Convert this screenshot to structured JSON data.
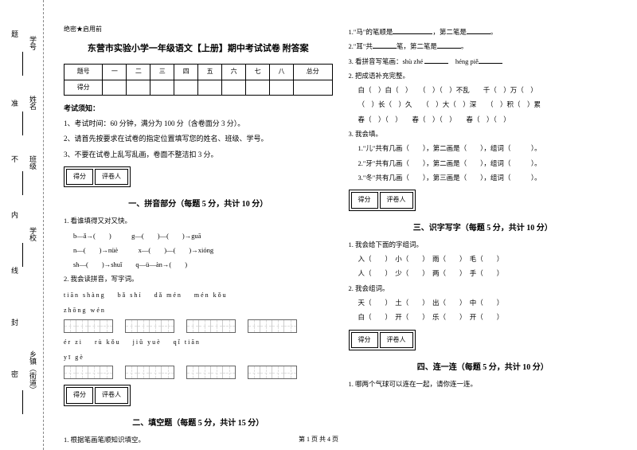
{
  "sidebar": {
    "labels": [
      "学号",
      "姓名",
      "班级",
      "学校",
      "乡镇（街道）"
    ],
    "marks": [
      "题",
      "准",
      "不",
      "内",
      "线",
      "封",
      "密"
    ]
  },
  "header": {
    "secret": "绝密★启用前",
    "title": "东营市实验小学一年级语文【上册】期中考试试卷 附答案"
  },
  "scoreTable": {
    "row1": [
      "题号",
      "一",
      "二",
      "三",
      "四",
      "五",
      "六",
      "七",
      "八",
      "总分"
    ],
    "row2": [
      "得分",
      "",
      "",
      "",
      "",
      "",
      "",
      "",
      "",
      ""
    ]
  },
  "notices": {
    "heading": "考试须知：",
    "n1": "1、考试时间：60 分钟，满分为 100 分（含卷面分 3 分）。",
    "n2": "2、请首先按要求在试卷的指定位置填写您的姓名、班级、学号。",
    "n3": "3、不要在试卷上乱写乱画，卷面不整洁扣 3 分。"
  },
  "scorer": {
    "c1": "得分",
    "c2": "评卷人"
  },
  "sec1": {
    "title": "一、拼音部分（每题 5 分，共计 10 分）",
    "q1": "1. 看谁填得又对又快。",
    "lines": [
      "b—ǎ→(　　)　　　g—(　　)—(　　)→guā",
      "n—(　　)→nüè　　　x—(　　)—(　　)→xióng",
      "sh—(　　)→shuǐ　　q—ü—àn→(　　)"
    ],
    "q2": "2. 我会读拼音，写字词。",
    "pinyinRow1": [
      "tiān shàng",
      "bǎ shí",
      "dǎ mén",
      "mén kǒu"
    ],
    "pinyinRow1b": "zhōng wén",
    "pinyinRow2": [
      "ér zi",
      "rù kǒu",
      "jiǔ yuè",
      "qǐ tiān"
    ],
    "pinyinRow2b": "yī gè"
  },
  "sec2": {
    "title": "二、填空题（每题 5 分，共计 15 分）",
    "q1": "1. 根据笔画笔顺知识填空。"
  },
  "right": {
    "r1": "1.\"马\"的笔顺是",
    "r1b": "，第二笔是",
    "r2": "2.\"耳\"共",
    "r2b": "笔，第二笔是",
    "r3": "3. 看拼音写笔画：shù zhé",
    "r3b": "héng piě",
    "q2": "2. 把成语补充完整。",
    "idioms": [
      "白（　）白（　）　　（　）（　）不乱　　千（　）万（　）",
      "（　）长（　）久　　（　）大（　）深　　（　）积（　）累",
      "春（　）（　）　　春（　）（　）　　春（　）（　）"
    ],
    "q3": "3. 我会填。",
    "fills": [
      "1.\"儿\"共有几画（　　），第二画是（　　），组词（　　　）。",
      "2.\"牙\"共有几画（　　），第二画是（　　），组词（　　　）。",
      "3.\"冬\"共有几画（　　），第三画是（　　），组词（　　　）。"
    ]
  },
  "sec3": {
    "title": "三、识字写字（每题 5 分，共计 10 分）",
    "q1": "1. 我会给下面的字组词。",
    "words1": "入（　　）　小（　　）　雨（　　）　毛（　　）",
    "words1b": "人（　　）　少（　　）　两（　　）　手（　　）",
    "q2": "2. 我会组词。",
    "words2": "天（　　）　土（　　）　出（　　）　中（　　）",
    "words2b": "白（　　）　开（　　）　乐（　　）　开（　　）"
  },
  "sec4": {
    "title": "四、连一连（每题 5 分，共计 10 分）",
    "q1": "1. 哪两个气球可以连在一起，请你连一连。"
  },
  "footer": "第 1 页 共 4 页"
}
